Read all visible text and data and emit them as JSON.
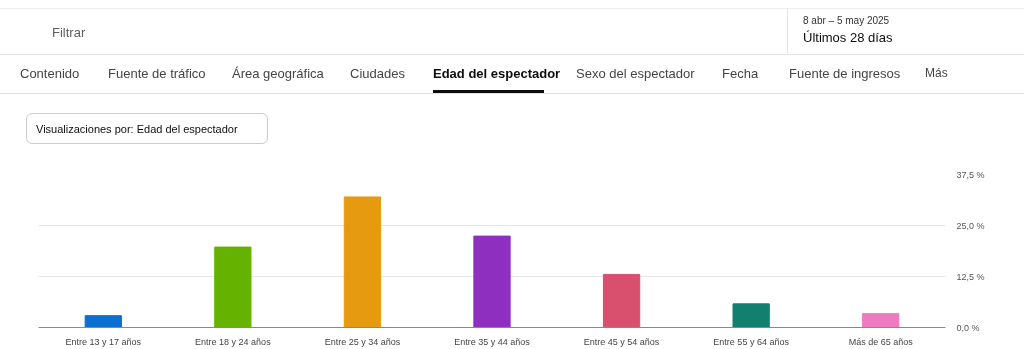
{
  "chart_data": {
    "type": "bar",
    "title": "Visualizaciones por: Edad del espectador",
    "annotations": [
      "Filtrar",
      "8 abr – 5 may 2025",
      "Últimos 28 días",
      "Contenido",
      "Fuente de tráfico",
      "Área geográfica",
      "Ciudades",
      "Edad del espectador",
      "Sexo del espectador",
      "Fecha",
      "Fuente de ingresos",
      "Más"
    ],
    "categories": [
      "Entre 13 y 17 años",
      "Entre 18 y 24 años",
      "Entre 25 y 34 años",
      "Entre 35 y 44 años",
      "Entre 45 y 54 años",
      "Entre 55 y 64 años",
      "Más de 65 años"
    ],
    "values": [
      2.9,
      19.7,
      32.0,
      22.4,
      13.0,
      5.8,
      3.4
    ],
    "colors": [
      "#0b6fd1",
      "#65b300",
      "#e69a0f",
      "#8e2fc0",
      "#d94f6e",
      "#12806f",
      "#f07ac0"
    ],
    "ylim": [
      0,
      37.5
    ],
    "yticks": [
      {
        "value": 0,
        "label": "0,0 %"
      },
      {
        "value": 12.5,
        "label": "12,5 %"
      },
      {
        "value": 25,
        "label": "25,0 %"
      },
      {
        "value": 37.5,
        "label": "37,5 %"
      }
    ],
    "grid": "y"
  }
}
